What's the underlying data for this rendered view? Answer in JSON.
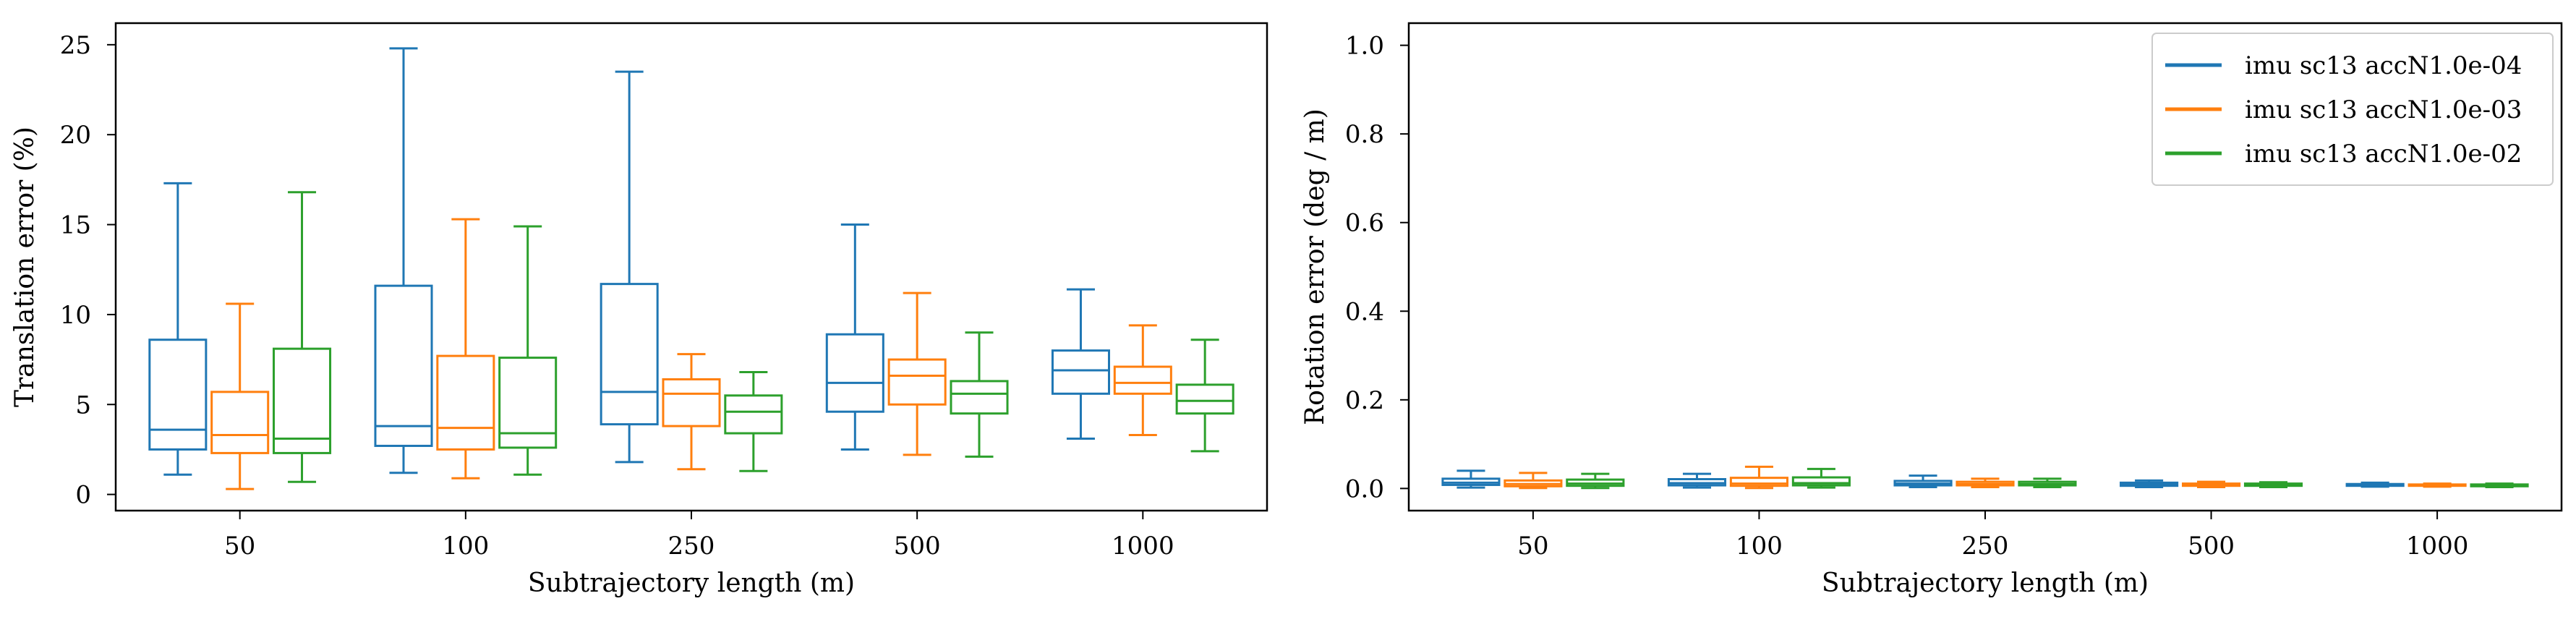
{
  "chart_data": [
    {
      "type": "box",
      "xlabel": "Subtrajectory length (m)",
      "ylabel": "Translation error (%)",
      "categories": [
        "50",
        "100",
        "250",
        "500",
        "1000"
      ],
      "ylim": [
        -0.9,
        26.2
      ],
      "yticks": [
        0,
        5,
        10,
        15,
        20,
        25
      ],
      "grid": false,
      "series": [
        {
          "name": "imu sc13 accN1.0e-04",
          "color": "#1f77b4",
          "boxes": [
            {
              "whislo": 1.1,
              "q1": 2.5,
              "med": 3.6,
              "q3": 8.6,
              "whishi": 17.3
            },
            {
              "whislo": 1.2,
              "q1": 2.7,
              "med": 3.8,
              "q3": 11.6,
              "whishi": 24.8
            },
            {
              "whislo": 1.8,
              "q1": 3.9,
              "med": 5.7,
              "q3": 11.7,
              "whishi": 23.5
            },
            {
              "whislo": 2.5,
              "q1": 4.6,
              "med": 6.2,
              "q3": 8.9,
              "whishi": 15.0
            },
            {
              "whislo": 3.1,
              "q1": 5.6,
              "med": 6.9,
              "q3": 8.0,
              "whishi": 11.4
            }
          ]
        },
        {
          "name": "imu sc13 accN1.0e-03",
          "color": "#ff7f0e",
          "boxes": [
            {
              "whislo": 0.3,
              "q1": 2.3,
              "med": 3.3,
              "q3": 5.7,
              "whishi": 10.6
            },
            {
              "whislo": 0.9,
              "q1": 2.5,
              "med": 3.7,
              "q3": 7.7,
              "whishi": 15.3
            },
            {
              "whislo": 1.4,
              "q1": 3.8,
              "med": 5.6,
              "q3": 6.4,
              "whishi": 7.8
            },
            {
              "whislo": 2.2,
              "q1": 5.0,
              "med": 6.6,
              "q3": 7.5,
              "whishi": 11.2
            },
            {
              "whislo": 3.3,
              "q1": 5.6,
              "med": 6.2,
              "q3": 7.1,
              "whishi": 9.4
            }
          ]
        },
        {
          "name": "imu sc13 accN1.0e-02",
          "color": "#2ca02c",
          "boxes": [
            {
              "whislo": 0.7,
              "q1": 2.3,
              "med": 3.1,
              "q3": 8.1,
              "whishi": 16.8
            },
            {
              "whislo": 1.1,
              "q1": 2.6,
              "med": 3.4,
              "q3": 7.6,
              "whishi": 14.9
            },
            {
              "whislo": 1.3,
              "q1": 3.4,
              "med": 4.6,
              "q3": 5.5,
              "whishi": 6.8
            },
            {
              "whislo": 2.1,
              "q1": 4.5,
              "med": 5.6,
              "q3": 6.3,
              "whishi": 9.0
            },
            {
              "whislo": 2.4,
              "q1": 4.5,
              "med": 5.2,
              "q3": 6.1,
              "whishi": 8.6
            }
          ]
        }
      ]
    },
    {
      "type": "box",
      "xlabel": "Subtrajectory length (m)",
      "ylabel": "Rotation error (deg / m)",
      "categories": [
        "50",
        "100",
        "250",
        "500",
        "1000"
      ],
      "ylim": [
        -0.05,
        1.05
      ],
      "yticks": [
        "0.0",
        "0.2",
        "0.4",
        "0.6",
        "0.8",
        "1.0"
      ],
      "grid": false,
      "legend": {
        "placement": "top-right"
      },
      "series": [
        {
          "name": "imu sc13 accN1.0e-04",
          "color": "#1f77b4",
          "boxes": [
            {
              "whislo": 0.002,
              "q1": 0.008,
              "med": 0.013,
              "q3": 0.022,
              "whishi": 0.04
            },
            {
              "whislo": 0.002,
              "q1": 0.007,
              "med": 0.012,
              "q3": 0.021,
              "whishi": 0.033
            },
            {
              "whislo": 0.003,
              "q1": 0.007,
              "med": 0.011,
              "q3": 0.017,
              "whishi": 0.029
            },
            {
              "whislo": 0.003,
              "q1": 0.006,
              "med": 0.009,
              "q3": 0.013,
              "whishi": 0.018
            },
            {
              "whislo": 0.004,
              "q1": 0.006,
              "med": 0.008,
              "q3": 0.01,
              "whishi": 0.013
            }
          ]
        },
        {
          "name": "imu sc13 accN1.0e-03",
          "color": "#ff7f0e",
          "boxes": [
            {
              "whislo": 0.001,
              "q1": 0.005,
              "med": 0.01,
              "q3": 0.018,
              "whishi": 0.035
            },
            {
              "whislo": 0.001,
              "q1": 0.006,
              "med": 0.011,
              "q3": 0.024,
              "whishi": 0.049
            },
            {
              "whislo": 0.003,
              "q1": 0.007,
              "med": 0.01,
              "q3": 0.015,
              "whishi": 0.022
            },
            {
              "whislo": 0.003,
              "q1": 0.006,
              "med": 0.008,
              "q3": 0.011,
              "whishi": 0.015
            },
            {
              "whislo": 0.004,
              "q1": 0.006,
              "med": 0.007,
              "q3": 0.009,
              "whishi": 0.011
            }
          ]
        },
        {
          "name": "imu sc13 accN1.0e-02",
          "color": "#2ca02c",
          "boxes": [
            {
              "whislo": 0.001,
              "q1": 0.006,
              "med": 0.011,
              "q3": 0.02,
              "whishi": 0.033
            },
            {
              "whislo": 0.002,
              "q1": 0.007,
              "med": 0.012,
              "q3": 0.025,
              "whishi": 0.044
            },
            {
              "whislo": 0.003,
              "q1": 0.007,
              "med": 0.01,
              "q3": 0.015,
              "whishi": 0.022
            },
            {
              "whislo": 0.003,
              "q1": 0.006,
              "med": 0.008,
              "q3": 0.011,
              "whishi": 0.014
            },
            {
              "whislo": 0.003,
              "q1": 0.005,
              "med": 0.007,
              "q3": 0.009,
              "whishi": 0.011
            }
          ]
        }
      ]
    }
  ]
}
